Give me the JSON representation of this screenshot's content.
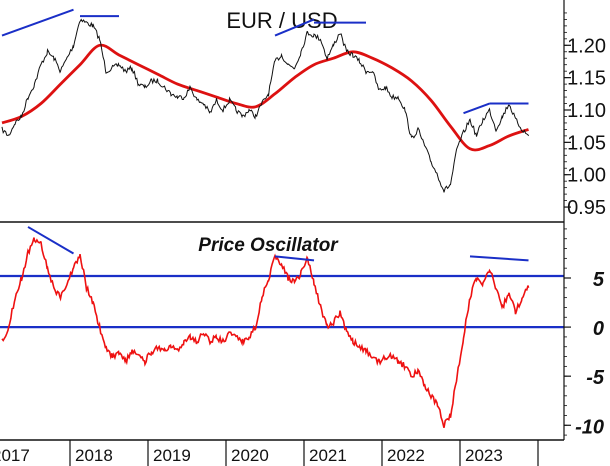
{
  "chart_data": [
    {
      "type": "line",
      "title": "EUR / USD",
      "x_labels": [
        "2017",
        "2018",
        "2019",
        "2020",
        "2021",
        "2022",
        "2023"
      ],
      "ylim": [
        0.93,
        1.27
      ],
      "yticks": [
        0.95,
        1.0,
        1.05,
        1.1,
        1.15,
        1.2
      ],
      "ytick_labels": [
        "0.95",
        "1.00",
        "1.05",
        "1.10",
        "1.15",
        "1.20"
      ],
      "colors": {
        "price": "#111111",
        "moving_average": "#dd1111",
        "trendline": "#1a2fc7"
      },
      "series": [
        {
          "role": "price",
          "points": [
            [
              "2017-01",
              1.07
            ],
            [
              "2017-02",
              1.06
            ],
            [
              "2017-03",
              1.08
            ],
            [
              "2017-04",
              1.09
            ],
            [
              "2017-05",
              1.12
            ],
            [
              "2017-06",
              1.14
            ],
            [
              "2017-07",
              1.17
            ],
            [
              "2017-08",
              1.19
            ],
            [
              "2017-09",
              1.18
            ],
            [
              "2017-10",
              1.16
            ],
            [
              "2017-11",
              1.18
            ],
            [
              "2017-12",
              1.2
            ],
            [
              "2018-01",
              1.24
            ],
            [
              "2018-02",
              1.235
            ],
            [
              "2018-03",
              1.23
            ],
            [
              "2018-04",
              1.21
            ],
            [
              "2018-05",
              1.16
            ],
            [
              "2018-06",
              1.165
            ],
            [
              "2018-07",
              1.17
            ],
            [
              "2018-08",
              1.16
            ],
            [
              "2018-09",
              1.165
            ],
            [
              "2018-10",
              1.14
            ],
            [
              "2018-11",
              1.135
            ],
            [
              "2018-12",
              1.145
            ],
            [
              "2019-01",
              1.145
            ],
            [
              "2019-02",
              1.135
            ],
            [
              "2019-03",
              1.125
            ],
            [
              "2019-04",
              1.12
            ],
            [
              "2019-05",
              1.12
            ],
            [
              "2019-06",
              1.135
            ],
            [
              "2019-07",
              1.115
            ],
            [
              "2019-08",
              1.11
            ],
            [
              "2019-09",
              1.095
            ],
            [
              "2019-10",
              1.115
            ],
            [
              "2019-11",
              1.1
            ],
            [
              "2019-12",
              1.115
            ],
            [
              "2020-01",
              1.1
            ],
            [
              "2020-02",
              1.09
            ],
            [
              "2020-03",
              1.1
            ],
            [
              "2020-04",
              1.09
            ],
            [
              "2020-05",
              1.11
            ],
            [
              "2020-06",
              1.125
            ],
            [
              "2020-07",
              1.175
            ],
            [
              "2020-08",
              1.185
            ],
            [
              "2020-09",
              1.17
            ],
            [
              "2020-10",
              1.165
            ],
            [
              "2020-11",
              1.19
            ],
            [
              "2020-12",
              1.22
            ],
            [
              "2021-01",
              1.215
            ],
            [
              "2021-02",
              1.21
            ],
            [
              "2021-03",
              1.18
            ],
            [
              "2021-04",
              1.2
            ],
            [
              "2021-05",
              1.22
            ],
            [
              "2021-06",
              1.19
            ],
            [
              "2021-07",
              1.185
            ],
            [
              "2021-08",
              1.175
            ],
            [
              "2021-09",
              1.16
            ],
            [
              "2021-10",
              1.16
            ],
            [
              "2021-11",
              1.13
            ],
            [
              "2021-12",
              1.135
            ],
            [
              "2022-01",
              1.12
            ],
            [
              "2022-02",
              1.12
            ],
            [
              "2022-03",
              1.1
            ],
            [
              "2022-04",
              1.055
            ],
            [
              "2022-05",
              1.07
            ],
            [
              "2022-06",
              1.045
            ],
            [
              "2022-07",
              1.02
            ],
            [
              "2022-08",
              1.0
            ],
            [
              "2022-09",
              0.975
            ],
            [
              "2022-10",
              0.985
            ],
            [
              "2022-11",
              1.04
            ],
            [
              "2022-12",
              1.065
            ],
            [
              "2023-01",
              1.085
            ],
            [
              "2023-02",
              1.06
            ],
            [
              "2023-03",
              1.085
            ],
            [
              "2023-04",
              1.1
            ],
            [
              "2023-05",
              1.07
            ],
            [
              "2023-06",
              1.09
            ],
            [
              "2023-07",
              1.11
            ],
            [
              "2023-08",
              1.085
            ],
            [
              "2023-09",
              1.07
            ],
            [
              "2023-10",
              1.06
            ]
          ]
        },
        {
          "role": "moving_average",
          "points": [
            [
              "2017-01",
              1.08
            ],
            [
              "2017-04",
              1.09
            ],
            [
              "2017-07",
              1.11
            ],
            [
              "2017-10",
              1.14
            ],
            [
              "2018-01",
              1.17
            ],
            [
              "2018-04",
              1.2
            ],
            [
              "2018-07",
              1.185
            ],
            [
              "2018-10",
              1.17
            ],
            [
              "2019-01",
              1.155
            ],
            [
              "2019-04",
              1.14
            ],
            [
              "2019-07",
              1.13
            ],
            [
              "2019-10",
              1.12
            ],
            [
              "2020-01",
              1.11
            ],
            [
              "2020-04",
              1.105
            ],
            [
              "2020-07",
              1.125
            ],
            [
              "2020-10",
              1.15
            ],
            [
              "2021-01",
              1.17
            ],
            [
              "2021-04",
              1.18
            ],
            [
              "2021-07",
              1.19
            ],
            [
              "2021-10",
              1.18
            ],
            [
              "2022-01",
              1.165
            ],
            [
              "2022-04",
              1.145
            ],
            [
              "2022-07",
              1.115
            ],
            [
              "2022-10",
              1.075
            ],
            [
              "2023-01",
              1.04
            ],
            [
              "2023-04",
              1.045
            ],
            [
              "2023-07",
              1.06
            ],
            [
              "2023-10",
              1.07
            ]
          ]
        }
      ],
      "trendlines": [
        [
          [
            "2017-01",
            1.215
          ],
          [
            "2017-12",
            1.255
          ]
        ],
        [
          [
            "2018-01",
            1.245
          ],
          [
            "2018-07",
            1.245
          ]
        ],
        [
          [
            "2020-07",
            1.215
          ],
          [
            "2021-01",
            1.24
          ]
        ],
        [
          [
            "2021-01",
            1.235
          ],
          [
            "2021-09",
            1.235
          ]
        ],
        [
          [
            "2022-12",
            1.095
          ],
          [
            "2023-04",
            1.11
          ]
        ],
        [
          [
            "2023-04",
            1.11
          ],
          [
            "2023-10",
            1.11
          ]
        ]
      ]
    },
    {
      "type": "line",
      "title": "Price Oscillator",
      "ylim": [
        -11.5,
        10.5
      ],
      "yticks": [
        -10,
        -5,
        0,
        5
      ],
      "ytick_labels": [
        "-10",
        "-5",
        "0",
        "5"
      ],
      "horizontal_lines": [
        0,
        5.2
      ],
      "colors": {
        "oscillator": "#ee1111",
        "reference": "#1a2fc7",
        "trendline": "#1a2fc7"
      },
      "series": [
        {
          "role": "oscillator",
          "points": [
            [
              "2017-01",
              -1.5
            ],
            [
              "2017-02",
              0
            ],
            [
              "2017-03",
              3
            ],
            [
              "2017-04",
              5
            ],
            [
              "2017-05",
              7.5
            ],
            [
              "2017-06",
              9
            ],
            [
              "2017-07",
              8.5
            ],
            [
              "2017-08",
              6
            ],
            [
              "2017-09",
              4
            ],
            [
              "2017-10",
              3
            ],
            [
              "2017-11",
              4.5
            ],
            [
              "2017-12",
              6
            ],
            [
              "2018-01",
              7.5
            ],
            [
              "2018-02",
              4
            ],
            [
              "2018-03",
              2.5
            ],
            [
              "2018-04",
              0
            ],
            [
              "2018-05",
              -2
            ],
            [
              "2018-06",
              -3
            ],
            [
              "2018-07",
              -2.5
            ],
            [
              "2018-08",
              -3.5
            ],
            [
              "2018-09",
              -2.5
            ],
            [
              "2018-10",
              -3
            ],
            [
              "2018-11",
              -3.5
            ],
            [
              "2018-12",
              -2.5
            ],
            [
              "2019-01",
              -2
            ],
            [
              "2019-02",
              -2.5
            ],
            [
              "2019-03",
              -2
            ],
            [
              "2019-04",
              -2.5
            ],
            [
              "2019-05",
              -1.5
            ],
            [
              "2019-06",
              -1
            ],
            [
              "2019-07",
              -1.5
            ],
            [
              "2019-08",
              -0.5
            ],
            [
              "2019-09",
              -1.5
            ],
            [
              "2019-10",
              -1
            ],
            [
              "2019-11",
              -1.5
            ],
            [
              "2019-12",
              -0.5
            ],
            [
              "2020-01",
              -1
            ],
            [
              "2020-02",
              -1.5
            ],
            [
              "2020-03",
              -1
            ],
            [
              "2020-04",
              0
            ],
            [
              "2020-05",
              3
            ],
            [
              "2020-06",
              5
            ],
            [
              "2020-07",
              7
            ],
            [
              "2020-08",
              6.5
            ],
            [
              "2020-09",
              5
            ],
            [
              "2020-10",
              4.5
            ],
            [
              "2020-11",
              5.5
            ],
            [
              "2020-12",
              7
            ],
            [
              "2021-01",
              4.5
            ],
            [
              "2021-02",
              2
            ],
            [
              "2021-03",
              0
            ],
            [
              "2021-04",
              0.5
            ],
            [
              "2021-05",
              1.5
            ],
            [
              "2021-06",
              -0.5
            ],
            [
              "2021-07",
              -1.5
            ],
            [
              "2021-08",
              -2
            ],
            [
              "2021-09",
              -2.5
            ],
            [
              "2021-10",
              -3
            ],
            [
              "2021-11",
              -3.5
            ],
            [
              "2021-12",
              -3
            ],
            [
              "2022-01",
              -3
            ],
            [
              "2022-02",
              -3.5
            ],
            [
              "2022-03",
              -4
            ],
            [
              "2022-04",
              -5
            ],
            [
              "2022-05",
              -4.5
            ],
            [
              "2022-06",
              -6
            ],
            [
              "2022-07",
              -7
            ],
            [
              "2022-08",
              -8
            ],
            [
              "2022-09",
              -10
            ],
            [
              "2022-10",
              -9
            ],
            [
              "2022-11",
              -5
            ],
            [
              "2022-12",
              -1
            ],
            [
              "2023-01",
              3
            ],
            [
              "2023-02",
              5
            ],
            [
              "2023-03",
              4.5
            ],
            [
              "2023-04",
              6
            ],
            [
              "2023-05",
              4
            ],
            [
              "2023-06",
              2
            ],
            [
              "2023-07",
              3.5
            ],
            [
              "2023-08",
              1.5
            ],
            [
              "2023-09",
              3
            ],
            [
              "2023-10",
              4
            ]
          ]
        }
      ],
      "trendlines": [
        [
          [
            "2017-05",
            10.2
          ],
          [
            "2017-12",
            7.5
          ]
        ],
        [
          [
            "2020-07",
            7.2
          ],
          [
            "2021-01",
            6.8
          ]
        ],
        [
          [
            "2023-01",
            7.2
          ],
          [
            "2023-10",
            6.8
          ]
        ]
      ]
    }
  ]
}
